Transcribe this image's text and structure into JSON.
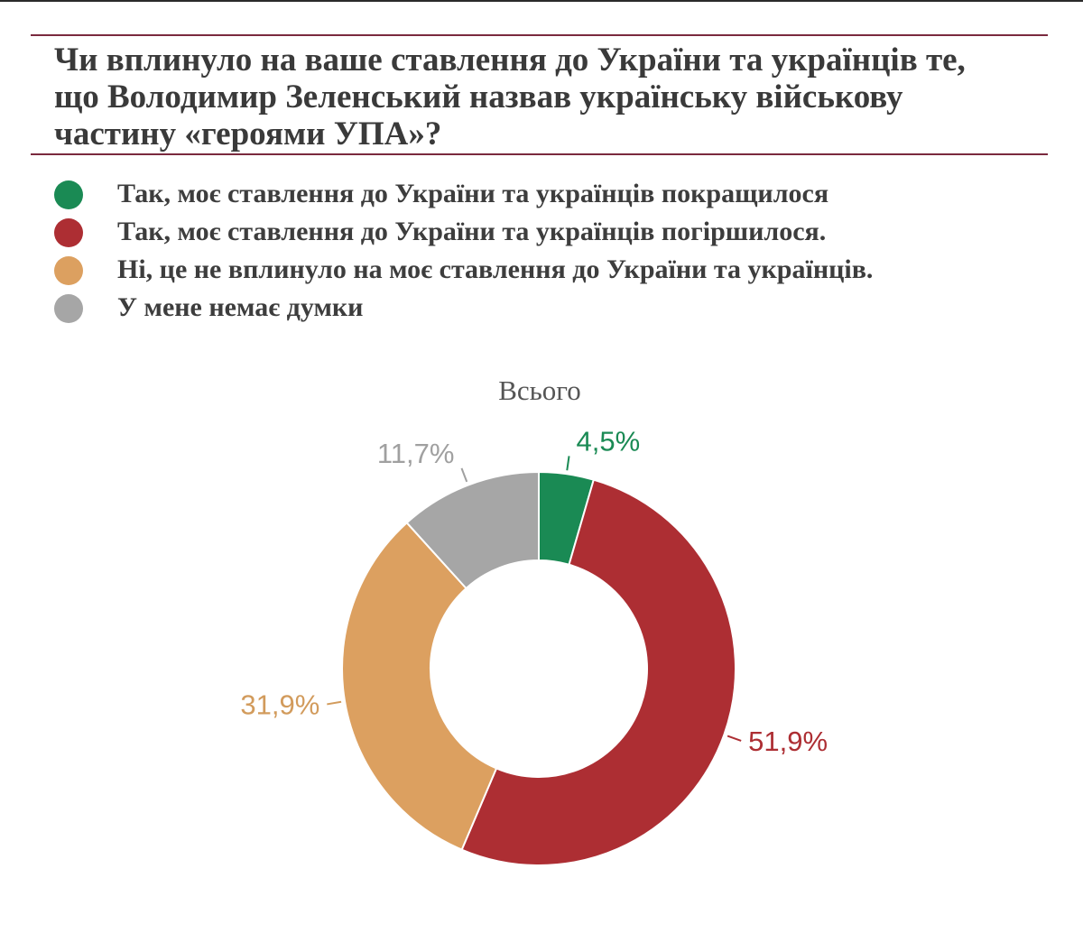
{
  "title_lines": [
    "Чи вплинуло на ваше ставлення до України та українців те,",
    "що Володимир Зеленський назвав українську військову",
    "частину «героями УПА»?"
  ],
  "legend": [
    {
      "label": "Так, моє ставлення до України та українців покращилося",
      "color": "#1a8a54"
    },
    {
      "label": "Так, моє ставлення до України та українців погіршилося.",
      "color": "#ad2e33"
    },
    {
      "label": "Ні, це не вплинуло на моє ставлення до України та українців.",
      "color": "#dca060"
    },
    {
      "label": "У мене немає думки",
      "color": "#a6a6a6"
    }
  ],
  "chart_data": {
    "type": "pie",
    "subtitle": "Всього",
    "categories": [
      "Так, моє ставлення до України та українців покращилося",
      "Так, моє ставлення до України та українців погіршилося.",
      "Ні, це не вплинуло на моє ставлення до України та українців.",
      "У мене немає думки"
    ],
    "values": [
      4.5,
      51.9,
      31.9,
      11.7
    ],
    "value_labels": [
      "4,5%",
      "51,9%",
      "31,9%",
      "11,7%"
    ],
    "colors": [
      "#1a8a54",
      "#ad2e33",
      "#dca060",
      "#a6a6a6"
    ],
    "label_colors": [
      "#1a8a54",
      "#ad2e33",
      "#d29b5c",
      "#a0a0a0"
    ],
    "donut": true,
    "legend_position": "top-left"
  }
}
